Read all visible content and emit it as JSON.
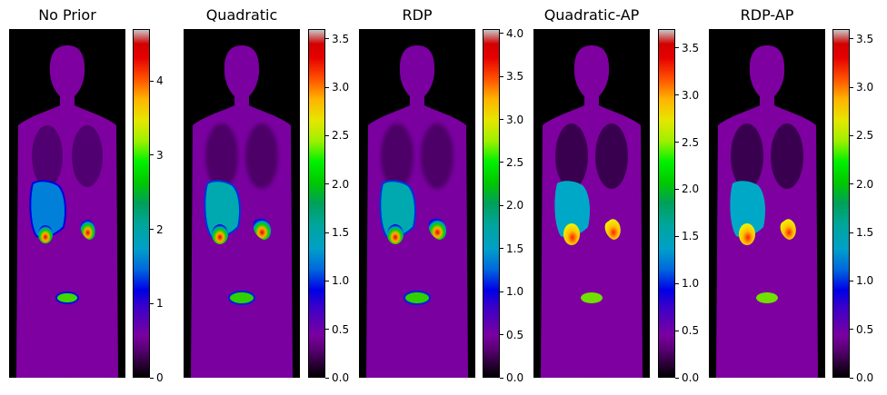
{
  "panels": [
    {
      "title": "No Prior",
      "vmax": 4.7,
      "ticks": [
        "0",
        "1",
        "2",
        "3",
        "4"
      ],
      "tickvals": [
        0,
        1,
        2,
        3,
        4
      ]
    },
    {
      "title": "Quadratic",
      "vmax": 3.6,
      "ticks": [
        "0.0",
        "0.5",
        "1.0",
        "1.5",
        "2.0",
        "2.5",
        "3.0",
        "3.5"
      ],
      "tickvals": [
        0,
        0.5,
        1,
        1.5,
        2,
        2.5,
        3,
        3.5
      ]
    },
    {
      "title": "RDP",
      "vmax": 4.05,
      "ticks": [
        "0.0",
        "0.5",
        "1.0",
        "1.5",
        "2.0",
        "2.5",
        "3.0",
        "3.5",
        "4.0"
      ],
      "tickvals": [
        0,
        0.5,
        1,
        1.5,
        2,
        2.5,
        3,
        3.5,
        4
      ]
    },
    {
      "title": "Quadratic-AP",
      "vmax": 3.7,
      "ticks": [
        "0.0",
        "0.5",
        "1.0",
        "1.5",
        "2.0",
        "2.5",
        "3.0",
        "3.5"
      ],
      "tickvals": [
        0,
        0.5,
        1,
        1.5,
        2,
        2.5,
        3,
        3.5
      ]
    },
    {
      "title": "RDP-AP",
      "vmax": 3.6,
      "ticks": [
        "0.0",
        "0.5",
        "1.0",
        "1.5",
        "2.0",
        "2.5",
        "3.0",
        "3.5"
      ],
      "tickvals": [
        0,
        0.5,
        1,
        1.5,
        2,
        2.5,
        3,
        3.5
      ]
    }
  ],
  "colormap": "nipy_spectral"
}
